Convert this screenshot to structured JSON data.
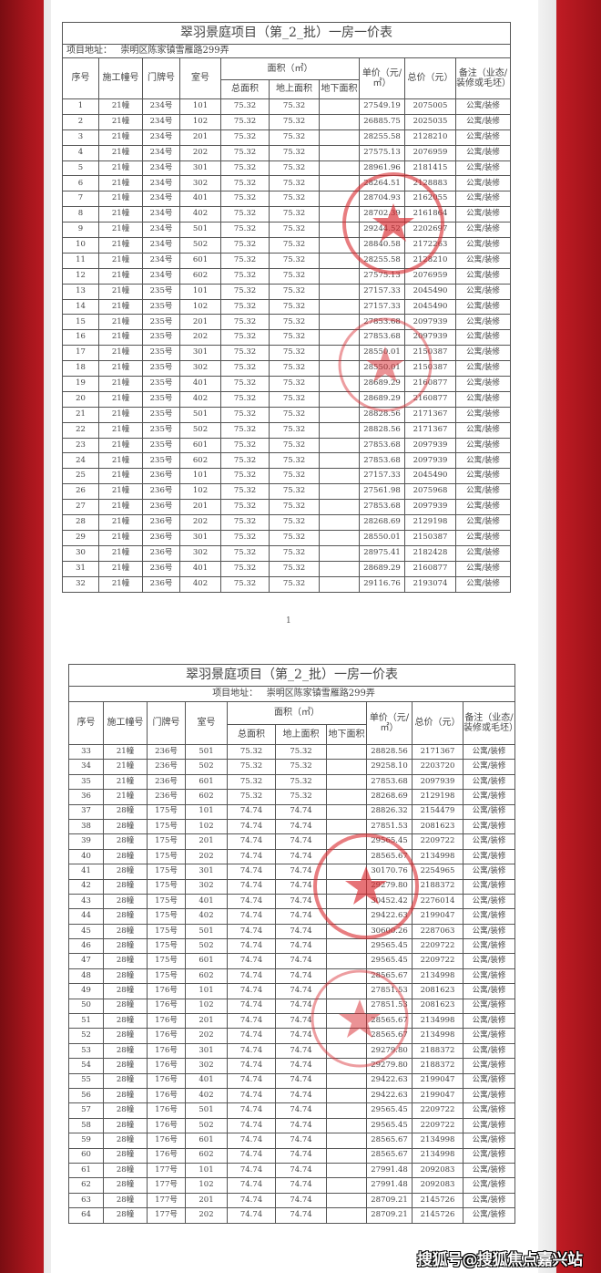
{
  "document": {
    "title": "翠羽景庭项目（第_2_批）一房一价表",
    "address_label": "项目地址：",
    "address": "崇明区陈家镇雪雁路299弄",
    "headers": {
      "seq": "序号",
      "building": "施工幢号",
      "door": "门牌号",
      "room": "室号",
      "area_group": "面积（㎡）",
      "area_total": "总面积",
      "area_above": "地上面积",
      "area_below": "地下面积",
      "unit_price": "单价（元/㎡）",
      "total_price": "总价（元）",
      "remark": "备注（业态/装修或毛坯）"
    },
    "page_number": "1",
    "stamp_color": "#d8262c",
    "watermark": "搜狐号@搜狐焦点嘉兴站"
  },
  "page1_rows": [
    [
      "1",
      "21幢",
      "234号",
      "101",
      "75.32",
      "75.32",
      "",
      "27549.19",
      "2075005",
      "公寓/装修"
    ],
    [
      "2",
      "21幢",
      "234号",
      "102",
      "75.32",
      "75.32",
      "",
      "26885.75",
      "2025035",
      "公寓/装修"
    ],
    [
      "3",
      "21幢",
      "234号",
      "201",
      "75.32",
      "75.32",
      "",
      "28255.58",
      "2128210",
      "公寓/装修"
    ],
    [
      "4",
      "21幢",
      "234号",
      "202",
      "75.32",
      "75.32",
      "",
      "27575.13",
      "2076959",
      "公寓/装修"
    ],
    [
      "5",
      "21幢",
      "234号",
      "301",
      "75.32",
      "75.32",
      "",
      "28961.96",
      "2181415",
      "公寓/装修"
    ],
    [
      "6",
      "21幢",
      "234号",
      "302",
      "75.32",
      "75.32",
      "",
      "28264.51",
      "2128883",
      "公寓/装修"
    ],
    [
      "7",
      "21幢",
      "234号",
      "401",
      "75.32",
      "75.32",
      "",
      "28704.93",
      "2162055",
      "公寓/装修"
    ],
    [
      "8",
      "21幢",
      "234号",
      "402",
      "75.32",
      "75.32",
      "",
      "28702.39",
      "2161864",
      "公寓/装修"
    ],
    [
      "9",
      "21幢",
      "234号",
      "501",
      "75.32",
      "75.32",
      "",
      "29244.52",
      "2202697",
      "公寓/装修"
    ],
    [
      "10",
      "21幢",
      "234号",
      "502",
      "75.32",
      "75.32",
      "",
      "28840.58",
      "2172263",
      "公寓/装修"
    ],
    [
      "11",
      "21幢",
      "234号",
      "601",
      "75.32",
      "75.32",
      "",
      "28255.58",
      "2128210",
      "公寓/装修"
    ],
    [
      "12",
      "21幢",
      "234号",
      "602",
      "75.32",
      "75.32",
      "",
      "27575.13",
      "2076959",
      "公寓/装修"
    ],
    [
      "13",
      "21幢",
      "235号",
      "101",
      "75.32",
      "75.32",
      "",
      "27157.33",
      "2045490",
      "公寓/装修"
    ],
    [
      "14",
      "21幢",
      "235号",
      "102",
      "75.32",
      "75.32",
      "",
      "27157.33",
      "2045490",
      "公寓/装修"
    ],
    [
      "15",
      "21幢",
      "235号",
      "201",
      "75.32",
      "75.32",
      "",
      "27853.68",
      "2097939",
      "公寓/装修"
    ],
    [
      "16",
      "21幢",
      "235号",
      "202",
      "75.32",
      "75.32",
      "",
      "27853.68",
      "2097939",
      "公寓/装修"
    ],
    [
      "17",
      "21幢",
      "235号",
      "301",
      "75.32",
      "75.32",
      "",
      "28550.01",
      "2150387",
      "公寓/装修"
    ],
    [
      "18",
      "21幢",
      "235号",
      "302",
      "75.32",
      "75.32",
      "",
      "28550.01",
      "2150387",
      "公寓/装修"
    ],
    [
      "19",
      "21幢",
      "235号",
      "401",
      "75.32",
      "75.32",
      "",
      "28689.29",
      "2160877",
      "公寓/装修"
    ],
    [
      "20",
      "21幢",
      "235号",
      "402",
      "75.32",
      "75.32",
      "",
      "28689.29",
      "2160877",
      "公寓/装修"
    ],
    [
      "21",
      "21幢",
      "235号",
      "501",
      "75.32",
      "75.32",
      "",
      "28828.56",
      "2171367",
      "公寓/装修"
    ],
    [
      "22",
      "21幢",
      "235号",
      "502",
      "75.32",
      "75.32",
      "",
      "28828.56",
      "2171367",
      "公寓/装修"
    ],
    [
      "23",
      "21幢",
      "235号",
      "601",
      "75.32",
      "75.32",
      "",
      "27853.68",
      "2097939",
      "公寓/装修"
    ],
    [
      "24",
      "21幢",
      "235号",
      "602",
      "75.32",
      "75.32",
      "",
      "27853.68",
      "2097939",
      "公寓/装修"
    ],
    [
      "25",
      "21幢",
      "236号",
      "101",
      "75.32",
      "75.32",
      "",
      "27157.33",
      "2045490",
      "公寓/装修"
    ],
    [
      "26",
      "21幢",
      "236号",
      "102",
      "75.32",
      "75.32",
      "",
      "27561.98",
      "2075968",
      "公寓/装修"
    ],
    [
      "27",
      "21幢",
      "236号",
      "201",
      "75.32",
      "75.32",
      "",
      "27853.68",
      "2097939",
      "公寓/装修"
    ],
    [
      "28",
      "21幢",
      "236号",
      "202",
      "75.32",
      "75.32",
      "",
      "28268.69",
      "2129198",
      "公寓/装修"
    ],
    [
      "29",
      "21幢",
      "236号",
      "301",
      "75.32",
      "75.32",
      "",
      "28550.01",
      "2150387",
      "公寓/装修"
    ],
    [
      "30",
      "21幢",
      "236号",
      "302",
      "75.32",
      "75.32",
      "",
      "28975.41",
      "2182428",
      "公寓/装修"
    ],
    [
      "31",
      "21幢",
      "236号",
      "401",
      "75.32",
      "75.32",
      "",
      "28689.29",
      "2160877",
      "公寓/装修"
    ],
    [
      "32",
      "21幢",
      "236号",
      "402",
      "75.32",
      "75.32",
      "",
      "29116.76",
      "2193074",
      "公寓/装修"
    ]
  ],
  "page2_rows": [
    [
      "33",
      "21幢",
      "236号",
      "501",
      "75.32",
      "75.32",
      "",
      "28828.56",
      "2171367",
      "公寓/装修"
    ],
    [
      "34",
      "21幢",
      "236号",
      "502",
      "75.32",
      "75.32",
      "",
      "29258.10",
      "2203720",
      "公寓/装修"
    ],
    [
      "35",
      "21幢",
      "236号",
      "601",
      "75.32",
      "75.32",
      "",
      "27853.68",
      "2097939",
      "公寓/装修"
    ],
    [
      "36",
      "21幢",
      "236号",
      "602",
      "75.32",
      "75.32",
      "",
      "28268.69",
      "2129198",
      "公寓/装修"
    ],
    [
      "37",
      "28幢",
      "175号",
      "101",
      "74.74",
      "74.74",
      "",
      "28826.32",
      "2154479",
      "公寓/装修"
    ],
    [
      "38",
      "28幢",
      "175号",
      "102",
      "74.74",
      "74.74",
      "",
      "27851.53",
      "2081623",
      "公寓/装修"
    ],
    [
      "39",
      "28幢",
      "175号",
      "201",
      "74.74",
      "74.74",
      "",
      "29565.45",
      "2209722",
      "公寓/装修"
    ],
    [
      "40",
      "28幢",
      "175号",
      "202",
      "74.74",
      "74.74",
      "",
      "28565.67",
      "2134998",
      "公寓/装修"
    ],
    [
      "41",
      "28幢",
      "175号",
      "301",
      "74.74",
      "74.74",
      "",
      "30170.76",
      "2254965",
      "公寓/装修"
    ],
    [
      "42",
      "28幢",
      "175号",
      "302",
      "74.74",
      "74.74",
      "",
      "29279.80",
      "2188372",
      "公寓/装修"
    ],
    [
      "43",
      "28幢",
      "175号",
      "401",
      "74.74",
      "74.74",
      "",
      "30452.42",
      "2276014",
      "公寓/装修"
    ],
    [
      "44",
      "28幢",
      "175号",
      "402",
      "74.74",
      "74.74",
      "",
      "29422.63",
      "2199047",
      "公寓/装修"
    ],
    [
      "45",
      "28幢",
      "175号",
      "501",
      "74.74",
      "74.74",
      "",
      "30600.26",
      "2287063",
      "公寓/装修"
    ],
    [
      "46",
      "28幢",
      "175号",
      "502",
      "74.74",
      "74.74",
      "",
      "29565.45",
      "2209722",
      "公寓/装修"
    ],
    [
      "47",
      "28幢",
      "175号",
      "601",
      "74.74",
      "74.74",
      "",
      "29565.45",
      "2209722",
      "公寓/装修"
    ],
    [
      "48",
      "28幢",
      "175号",
      "602",
      "74.74",
      "74.74",
      "",
      "28565.67",
      "2134998",
      "公寓/装修"
    ],
    [
      "49",
      "28幢",
      "176号",
      "101",
      "74.74",
      "74.74",
      "",
      "27851.53",
      "2081623",
      "公寓/装修"
    ],
    [
      "50",
      "28幢",
      "176号",
      "102",
      "74.74",
      "74.74",
      "",
      "27851.53",
      "2081623",
      "公寓/装修"
    ],
    [
      "51",
      "28幢",
      "176号",
      "201",
      "74.74",
      "74.74",
      "",
      "28565.67",
      "2134998",
      "公寓/装修"
    ],
    [
      "52",
      "28幢",
      "176号",
      "202",
      "74.74",
      "74.74",
      "",
      "28565.67",
      "2134998",
      "公寓/装修"
    ],
    [
      "53",
      "28幢",
      "176号",
      "301",
      "74.74",
      "74.74",
      "",
      "29279.80",
      "2188372",
      "公寓/装修"
    ],
    [
      "54",
      "28幢",
      "176号",
      "302",
      "74.74",
      "74.74",
      "",
      "29279.80",
      "2188372",
      "公寓/装修"
    ],
    [
      "55",
      "28幢",
      "176号",
      "401",
      "74.74",
      "74.74",
      "",
      "29422.63",
      "2199047",
      "公寓/装修"
    ],
    [
      "56",
      "28幢",
      "176号",
      "402",
      "74.74",
      "74.74",
      "",
      "29422.63",
      "2199047",
      "公寓/装修"
    ],
    [
      "57",
      "28幢",
      "176号",
      "501",
      "74.74",
      "74.74",
      "",
      "29565.45",
      "2209722",
      "公寓/装修"
    ],
    [
      "58",
      "28幢",
      "176号",
      "502",
      "74.74",
      "74.74",
      "",
      "29565.45",
      "2209722",
      "公寓/装修"
    ],
    [
      "59",
      "28幢",
      "176号",
      "601",
      "74.74",
      "74.74",
      "",
      "28565.67",
      "2134998",
      "公寓/装修"
    ],
    [
      "60",
      "28幢",
      "176号",
      "602",
      "74.74",
      "74.74",
      "",
      "28565.67",
      "2134998",
      "公寓/装修"
    ],
    [
      "61",
      "28幢",
      "177号",
      "101",
      "74.74",
      "74.74",
      "",
      "27991.48",
      "2092083",
      "公寓/装修"
    ],
    [
      "62",
      "28幢",
      "177号",
      "102",
      "74.74",
      "74.74",
      "",
      "27991.48",
      "2092083",
      "公寓/装修"
    ],
    [
      "63",
      "28幢",
      "177号",
      "201",
      "74.74",
      "74.74",
      "",
      "28709.21",
      "2145726",
      "公寓/装修"
    ],
    [
      "64",
      "28幢",
      "177号",
      "202",
      "74.74",
      "74.74",
      "",
      "28709.21",
      "2145726",
      "公寓/装修"
    ]
  ]
}
